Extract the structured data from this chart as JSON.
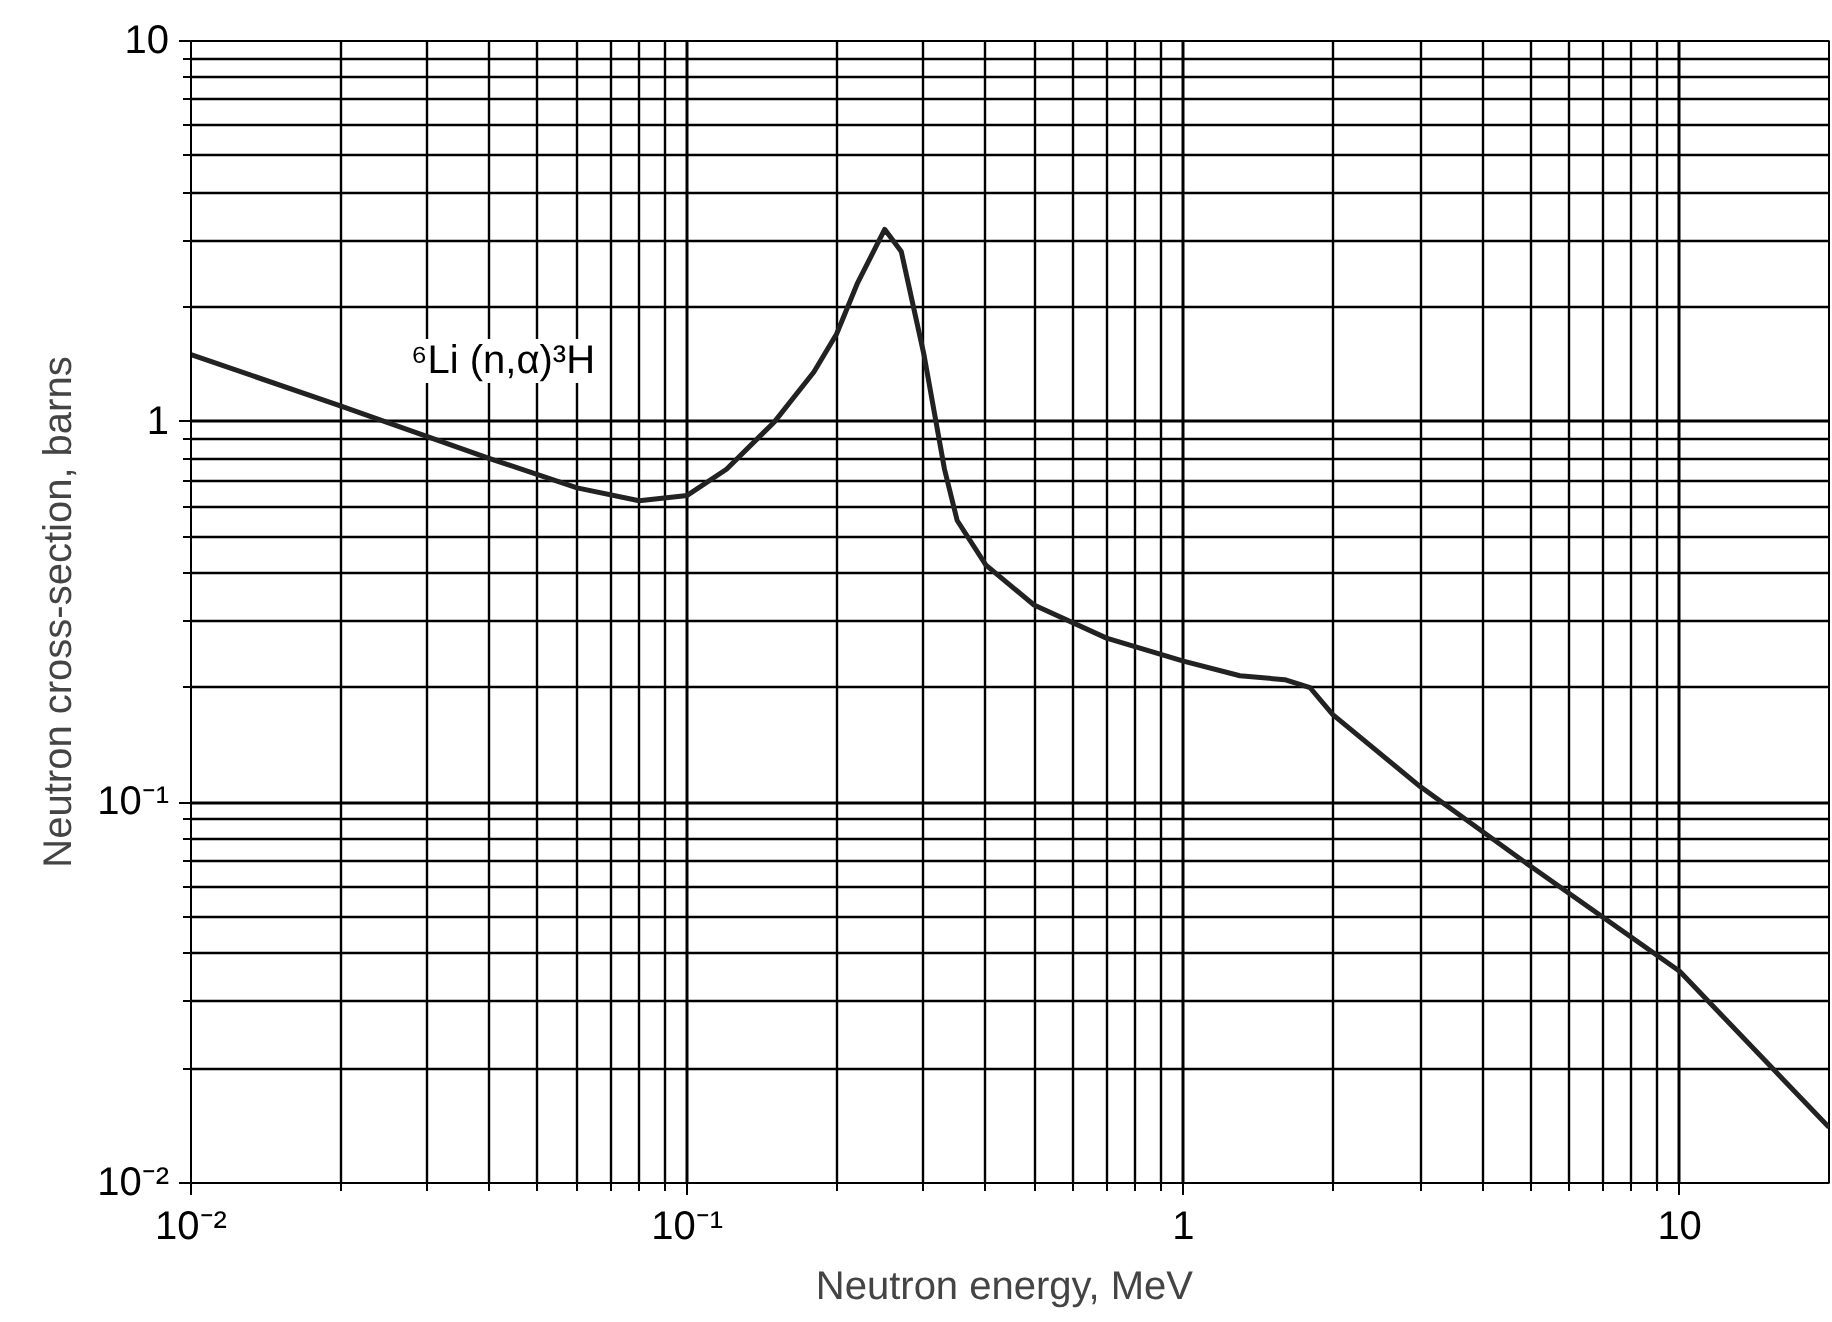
{
  "chart_data": {
    "type": "line",
    "xlabel": "Neutron  energy, MeV",
    "ylabel": "Neutron cross-section, barns",
    "log": "xy",
    "grid": true,
    "xlim": [
      0.01,
      20
    ],
    "ylim": [
      0.01,
      10
    ],
    "xticks": [
      {
        "value": 0.01,
        "label": "10⁻²"
      },
      {
        "value": 0.1,
        "label": "10⁻¹"
      },
      1,
      10
    ],
    "yticks": [
      {
        "value": 0.01,
        "label": "10⁻²"
      },
      {
        "value": 0.1,
        "label": "10⁻¹"
      },
      1,
      10
    ],
    "annotations": [
      "⁶Li (n,α)³H"
    ],
    "series": [
      {
        "color": "#222222",
        "x": [
          0.01,
          0.02,
          0.04,
          0.06,
          0.08,
          0.1,
          0.12,
          0.15,
          0.18,
          0.2,
          0.22,
          0.25,
          0.27,
          0.3,
          0.33,
          0.35,
          0.4,
          0.5,
          0.7,
          1,
          1.3,
          1.6,
          1.8,
          2,
          3,
          5,
          10,
          20
        ],
        "values": [
          1.5,
          1.1,
          0.8,
          0.67,
          0.62,
          0.64,
          0.75,
          1.0,
          1.35,
          1.7,
          2.3,
          3.2,
          2.8,
          1.5,
          0.75,
          0.55,
          0.42,
          0.33,
          0.27,
          0.235,
          0.215,
          0.21,
          0.2,
          0.17,
          0.11,
          0.068,
          0.036,
          0.014
        ]
      }
    ]
  }
}
